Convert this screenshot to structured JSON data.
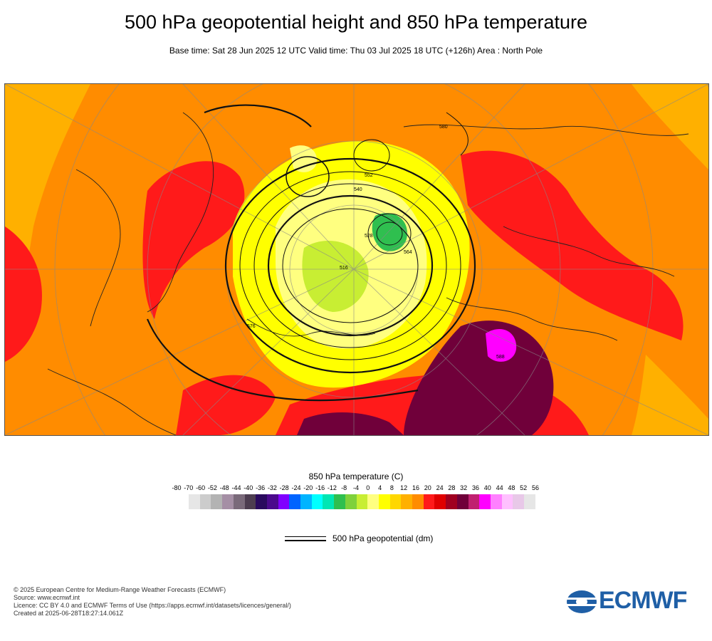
{
  "header": {
    "title": "500 hPa geopotential height and 850 hPa temperature",
    "subtitle": "Base time: Sat 28 Jun 2025 12 UTC Valid time: Thu 03 Jul 2025 18 UTC (+126h) Area : North Pole"
  },
  "map": {
    "description_colors": {
      "background": "#ff8c00",
      "hot": "#ff1a1a",
      "very_hot": "#7a0a3a",
      "cold_core": "#ffff33",
      "coldest": "#3cb44b"
    },
    "contour_labels": [
      "564",
      "576",
      "552",
      "540",
      "528",
      "516",
      "580",
      "588"
    ]
  },
  "legend": {
    "title": "850 hPa temperature (C)",
    "ticks": [
      "-80",
      "-70",
      "-60",
      "-52",
      "-48",
      "-44",
      "-40",
      "-36",
      "-32",
      "-28",
      "-24",
      "-20",
      "-16",
      "-12",
      "-8",
      "-4",
      "0",
      "4",
      "8",
      "12",
      "16",
      "20",
      "24",
      "28",
      "32",
      "36",
      "40",
      "44",
      "48",
      "52",
      "56"
    ],
    "colors": [
      "#e6e6e6",
      "#cccccc",
      "#b3b3b3",
      "#a58fa5",
      "#7a6a7a",
      "#4d3d50",
      "#2a0a5e",
      "#4b0a8c",
      "#8000ff",
      "#0064ff",
      "#00b4ff",
      "#00ffff",
      "#00e6b4",
      "#2fbf4f",
      "#7fd13b",
      "#c8ee33",
      "#ffff80",
      "#ffff00",
      "#ffd700",
      "#ffb000",
      "#ff8c00",
      "#ff1a1a",
      "#e00000",
      "#a00020",
      "#70003a",
      "#c02070",
      "#ff00ff",
      "#ff80ff",
      "#ffc0ff",
      "#e8c8e8",
      "#e6e6e6"
    ],
    "geo_label": "500 hPa geopotential (dm)"
  },
  "footer": {
    "lines": [
      "© 2025 European Centre for Medium-Range Weather Forecasts (ECMWF)",
      "Source: www.ecmwf.int",
      "Licence: CC BY 4.0 and ECMWF Terms of Use (https://apps.ecmwf.int/datasets/licences/general/)",
      "Created at 2025-06-28T18:27:14.061Z"
    ],
    "logo_text": "ECMWF"
  }
}
